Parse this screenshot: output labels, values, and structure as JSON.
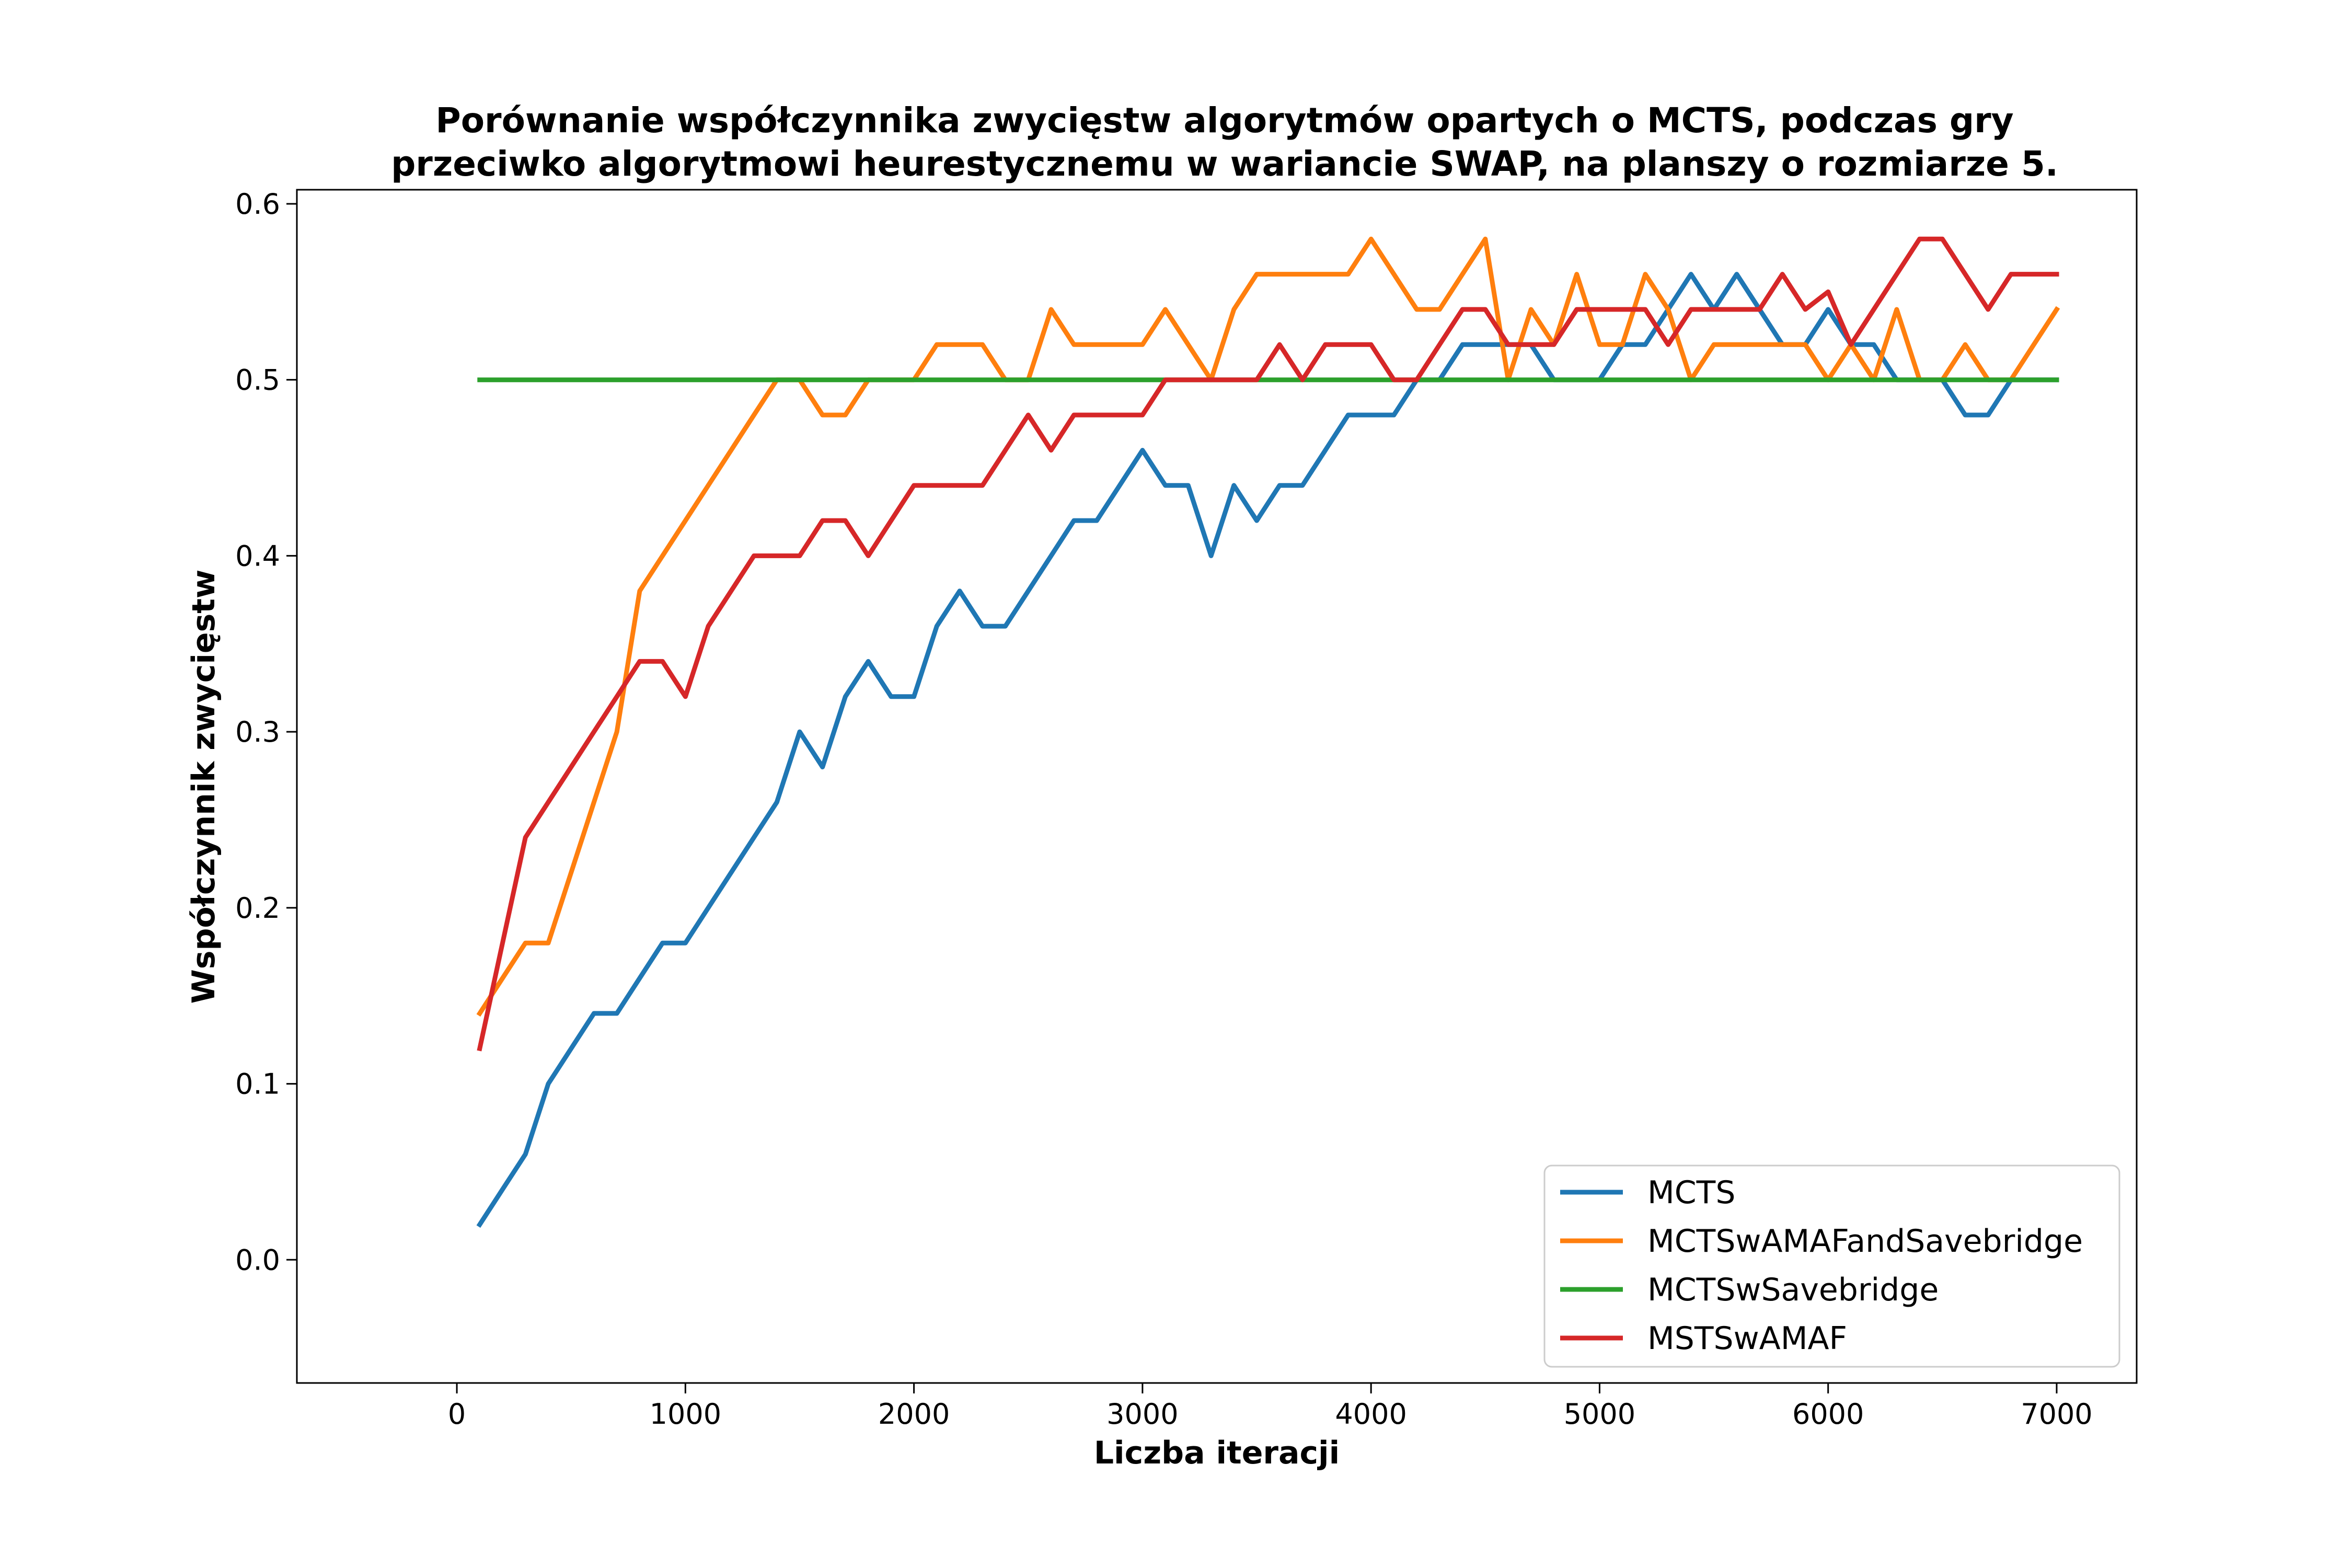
{
  "chart_data": {
    "type": "line",
    "title_lines": [
      "Porównanie współczynnika zwycięstw algorytmów opartych o MCTS, podczas gry",
      "przeciwko algorytmowi heurestycznemu w wariancie SWAP, na planszy o rozmiarze 5."
    ],
    "xlabel": "Liczba iteracji",
    "ylabel": "Współczynnik zwycięstw",
    "xlim": [
      -700,
      7350
    ],
    "ylim": [
      -0.07,
      0.608
    ],
    "xticks": [
      0,
      1000,
      2000,
      3000,
      4000,
      5000,
      6000,
      7000
    ],
    "yticks": [
      0.0,
      0.1,
      0.2,
      0.3,
      0.4,
      0.5,
      0.6
    ],
    "xtick_labels": [
      "0",
      "1000",
      "2000",
      "3000",
      "4000",
      "5000",
      "6000",
      "7000"
    ],
    "ytick_labels": [
      "0.0",
      "0.1",
      "0.2",
      "0.3",
      "0.4",
      "0.5",
      "0.6"
    ],
    "grid": false,
    "legend_position": "lower-right",
    "x": [
      100,
      200,
      300,
      400,
      500,
      600,
      700,
      800,
      900,
      1000,
      1100,
      1200,
      1300,
      1400,
      1500,
      1600,
      1700,
      1800,
      1900,
      2000,
      2100,
      2200,
      2300,
      2400,
      2500,
      2600,
      2700,
      2800,
      2900,
      3000,
      3100,
      3200,
      3300,
      3400,
      3500,
      3600,
      3700,
      3800,
      3900,
      4000,
      4100,
      4200,
      4300,
      4400,
      4500,
      4600,
      4700,
      4800,
      4900,
      5000,
      5100,
      5200,
      5300,
      5400,
      5500,
      5600,
      5700,
      5800,
      5900,
      6000,
      6100,
      6200,
      6300,
      6400,
      6500,
      6600,
      6700,
      6800,
      6900,
      7000
    ],
    "series": [
      {
        "name": "MCTS",
        "color": "#1f77b4",
        "values": [
          0.02,
          0.04,
          0.06,
          0.1,
          0.12,
          0.14,
          0.14,
          0.16,
          0.18,
          0.18,
          0.2,
          0.22,
          0.24,
          0.26,
          0.3,
          0.28,
          0.32,
          0.34,
          0.32,
          0.32,
          0.36,
          0.38,
          0.36,
          0.36,
          0.38,
          0.4,
          0.42,
          0.42,
          0.44,
          0.46,
          0.44,
          0.44,
          0.4,
          0.44,
          0.42,
          0.44,
          0.44,
          0.46,
          0.48,
          0.48,
          0.48,
          0.5,
          0.5,
          0.52,
          0.52,
          0.52,
          0.52,
          0.5,
          0.5,
          0.5,
          0.52,
          0.52,
          0.54,
          0.56,
          0.54,
          0.56,
          0.54,
          0.52,
          0.52,
          0.54,
          0.52,
          0.52,
          0.5,
          0.5,
          0.5,
          0.48,
          0.48,
          0.5,
          0.5,
          0.5
        ]
      },
      {
        "name": "MCTSwAMAFandSavebridge",
        "color": "#ff7f0e",
        "values": [
          0.14,
          0.16,
          0.18,
          0.18,
          0.22,
          0.26,
          0.3,
          0.38,
          0.4,
          0.42,
          0.44,
          0.46,
          0.48,
          0.5,
          0.5,
          0.48,
          0.48,
          0.5,
          0.5,
          0.5,
          0.52,
          0.52,
          0.52,
          0.5,
          0.5,
          0.54,
          0.52,
          0.52,
          0.52,
          0.52,
          0.54,
          0.52,
          0.5,
          0.54,
          0.56,
          0.56,
          0.56,
          0.56,
          0.56,
          0.58,
          0.56,
          0.54,
          0.54,
          0.56,
          0.58,
          0.5,
          0.54,
          0.52,
          0.56,
          0.52,
          0.52,
          0.56,
          0.54,
          0.5,
          0.52,
          0.52,
          0.52,
          0.52,
          0.52,
          0.5,
          0.52,
          0.5,
          0.54,
          0.5,
          0.5,
          0.52,
          0.5,
          0.5,
          0.52,
          0.54
        ]
      },
      {
        "name": "MCTSwSavebridge",
        "color": "#2ca02c",
        "values": [
          0.5,
          0.5,
          0.5,
          0.5,
          0.5,
          0.5,
          0.5,
          0.5,
          0.5,
          0.5,
          0.5,
          0.5,
          0.5,
          0.5,
          0.5,
          0.5,
          0.5,
          0.5,
          0.5,
          0.5,
          0.5,
          0.5,
          0.5,
          0.5,
          0.5,
          0.5,
          0.5,
          0.5,
          0.5,
          0.5,
          0.5,
          0.5,
          0.5,
          0.5,
          0.5,
          0.5,
          0.5,
          0.5,
          0.5,
          0.5,
          0.5,
          0.5,
          0.5,
          0.5,
          0.5,
          0.5,
          0.5,
          0.5,
          0.5,
          0.5,
          0.5,
          0.5,
          0.5,
          0.5,
          0.5,
          0.5,
          0.5,
          0.5,
          0.5,
          0.5,
          0.5,
          0.5,
          0.5,
          0.5,
          0.5,
          0.5,
          0.5,
          0.5,
          0.5,
          0.5
        ]
      },
      {
        "name": "MSTSwAMAF",
        "color": "#d62728",
        "values": [
          0.12,
          0.18,
          0.24,
          0.26,
          0.28,
          0.3,
          0.32,
          0.34,
          0.34,
          0.32,
          0.36,
          0.38,
          0.4,
          0.4,
          0.4,
          0.42,
          0.42,
          0.4,
          0.42,
          0.44,
          0.44,
          0.44,
          0.44,
          0.46,
          0.48,
          0.46,
          0.48,
          0.48,
          0.48,
          0.48,
          0.5,
          0.5,
          0.5,
          0.5,
          0.5,
          0.52,
          0.5,
          0.52,
          0.52,
          0.52,
          0.5,
          0.5,
          0.52,
          0.54,
          0.54,
          0.52,
          0.52,
          0.52,
          0.54,
          0.54,
          0.54,
          0.54,
          0.52,
          0.54,
          0.54,
          0.54,
          0.54,
          0.56,
          0.54,
          0.55,
          0.52,
          0.54,
          0.56,
          0.58,
          0.58,
          0.56,
          0.54,
          0.56,
          0.56,
          0.56
        ]
      }
    ]
  }
}
